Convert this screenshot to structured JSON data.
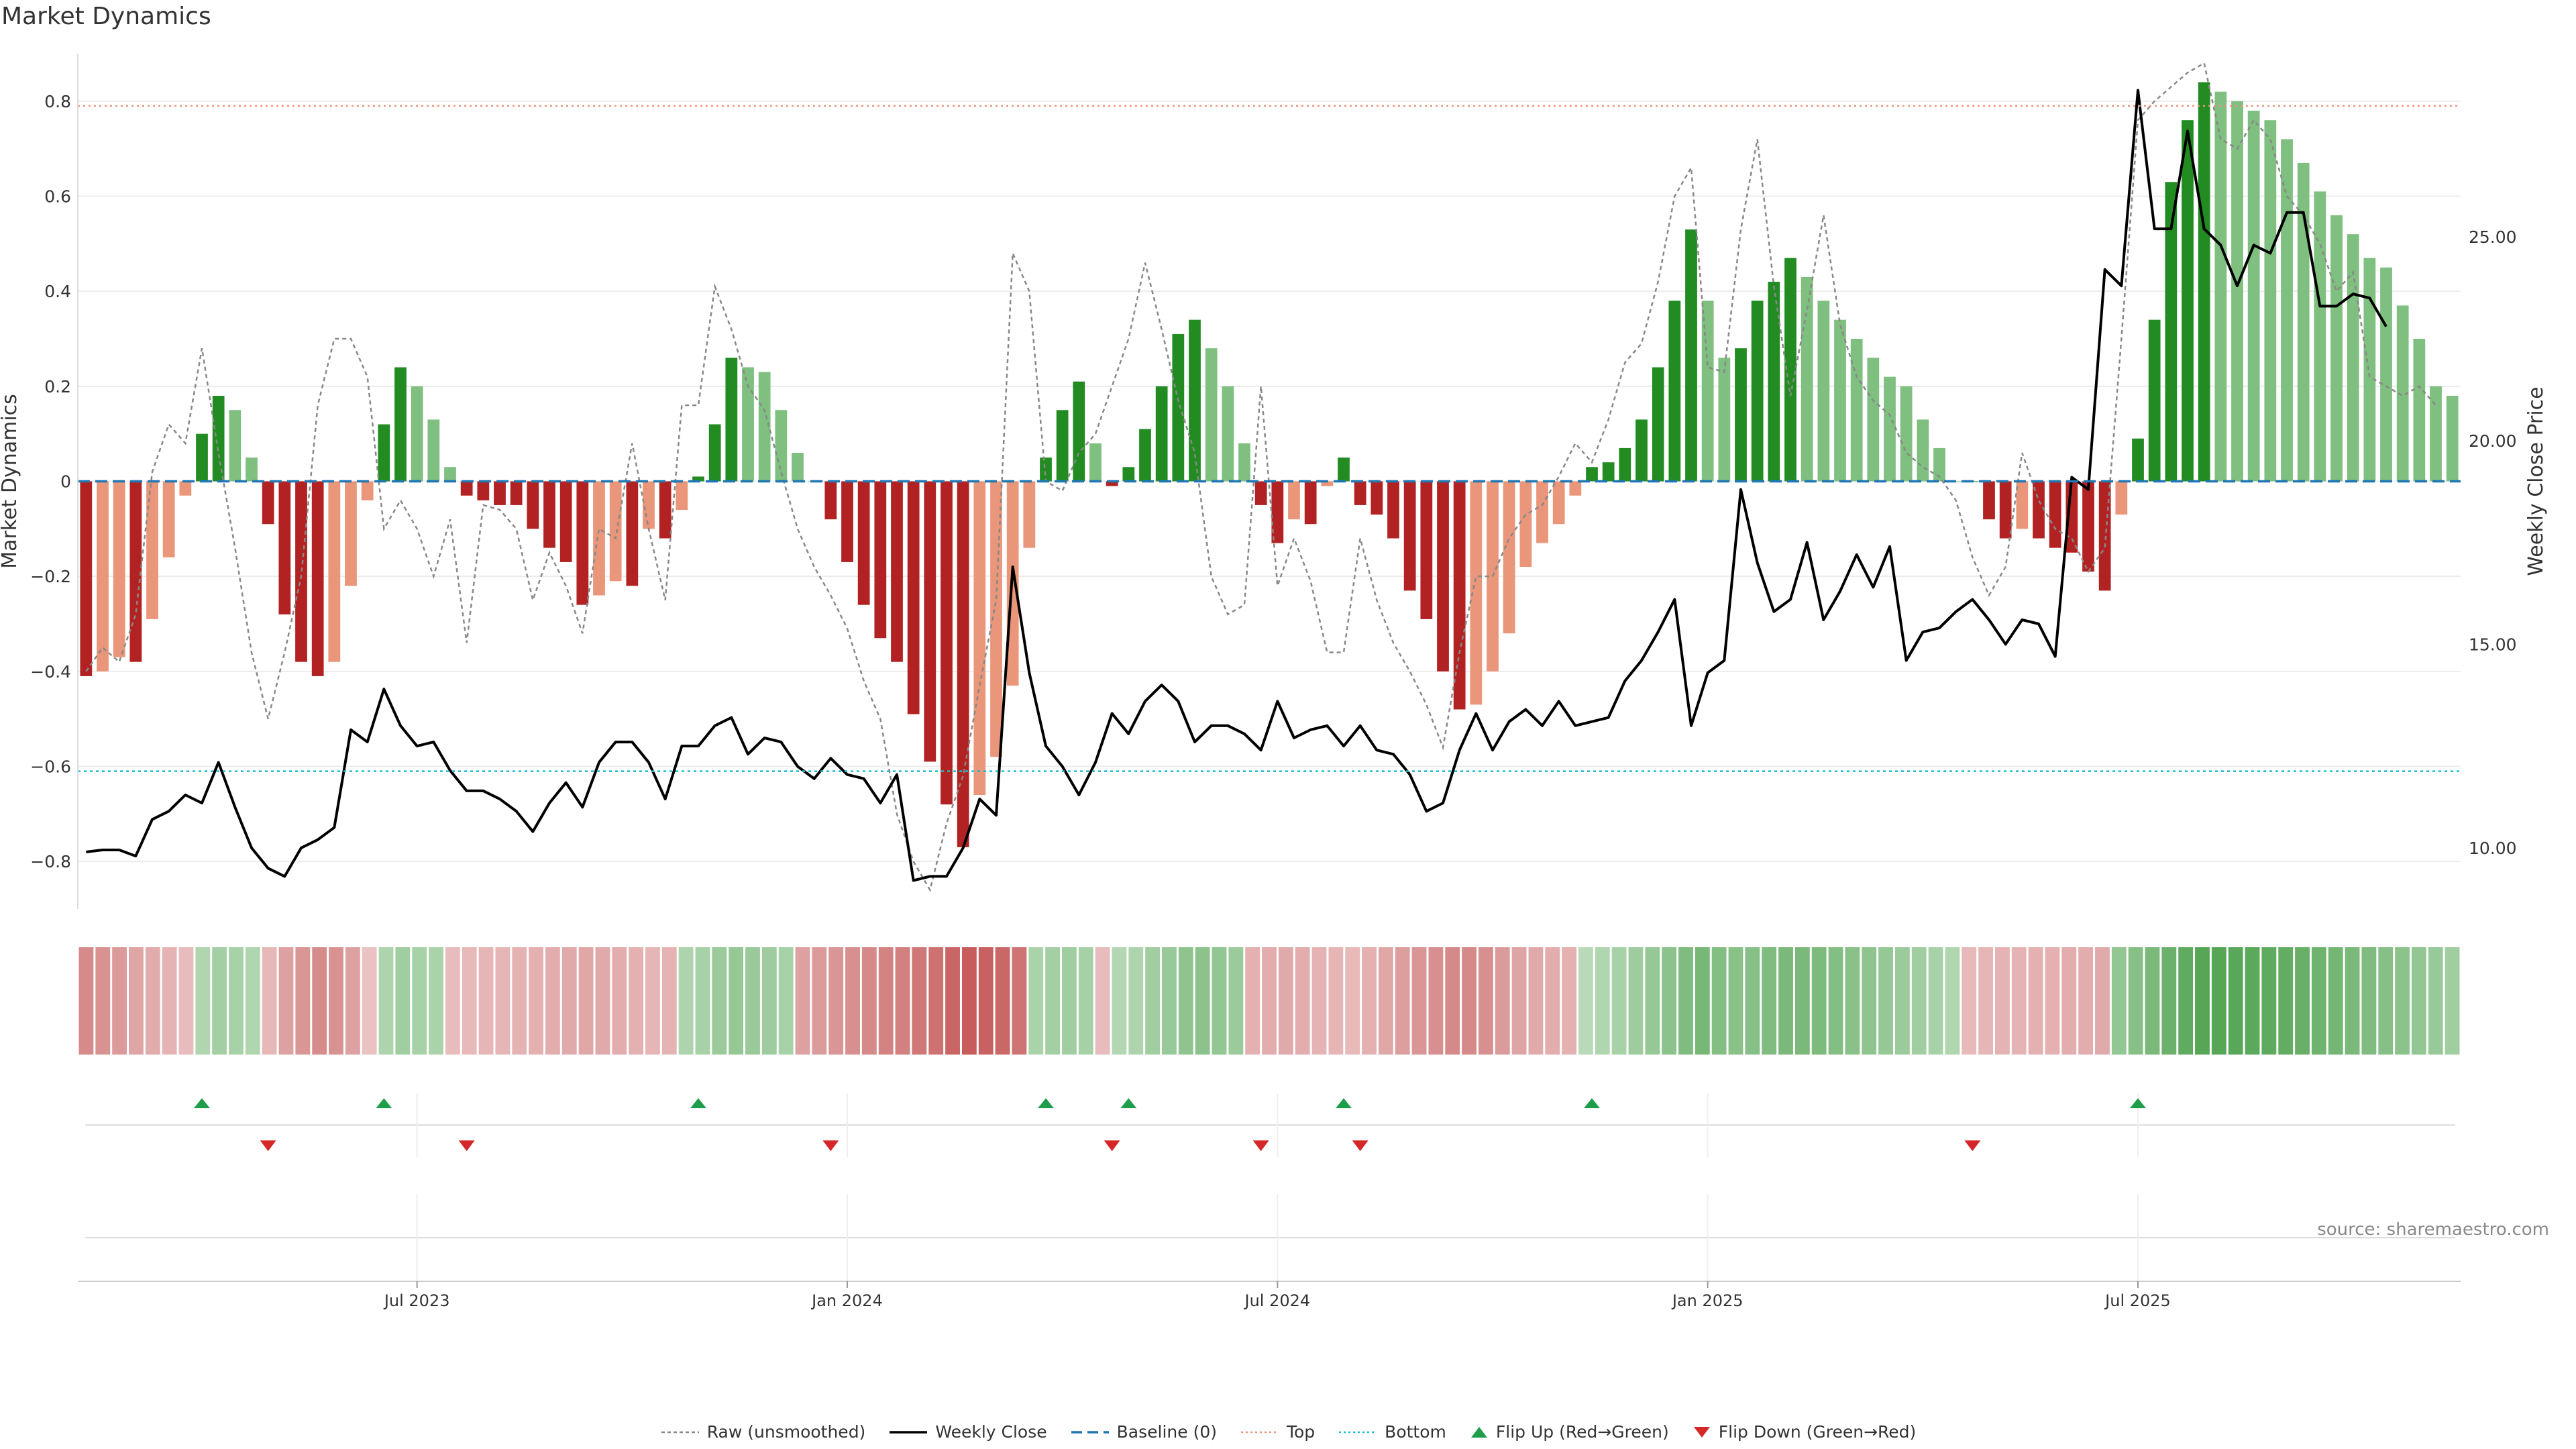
{
  "title": "Market Dynamics",
  "source": "source: sharemaestro.com",
  "colors": {
    "red_strong": "#b22222",
    "red_light": "#e9967a",
    "green_strong": "#228b22",
    "green_light": "#7fbf7f",
    "raw": "#888888",
    "close": "#000000",
    "baseline": "#1f77b4",
    "top": "#e9967a",
    "bottom": "#17becf",
    "flip_up": "#1e9e4a",
    "flip_down": "#d62728"
  },
  "legend": [
    {
      "key": "raw",
      "label": "Raw (unsmoothed)"
    },
    {
      "key": "close",
      "label": "Weekly Close"
    },
    {
      "key": "baseline",
      "label": "Baseline (0)"
    },
    {
      "key": "top",
      "label": "Top"
    },
    {
      "key": "bottom",
      "label": "Bottom"
    },
    {
      "key": "flip_up",
      "label": "Flip Up (Red→Green)"
    },
    {
      "key": "flip_down",
      "label": "Flip Down (Green→Red)"
    }
  ],
  "chart_data": {
    "type": "bar",
    "title": "Market Dynamics",
    "ylabel": "Market Dynamics",
    "y2label": "Weekly Close Price",
    "ylim": [
      -0.9,
      0.9
    ],
    "y2lim": [
      8.5,
      29.5
    ],
    "yticks": [
      "0.8",
      "0.6",
      "0.4",
      "0.2",
      "0",
      "−0.2",
      "−0.4",
      "−0.6",
      "−0.8"
    ],
    "y2ticks": [
      "25.00",
      "20.00",
      "15.00",
      "10.00"
    ],
    "top_threshold": 0.79,
    "bottom_threshold": -0.61,
    "x_range_weeks": [
      0,
      143
    ],
    "x_ticks": [
      {
        "label": "Jul 2023",
        "week": 20
      },
      {
        "label": "Jan 2024",
        "week": 46
      },
      {
        "label": "Jul 2024",
        "week": 72
      },
      {
        "label": "Jan 2025",
        "week": 98
      },
      {
        "label": "Jul 2025",
        "week": 124
      }
    ],
    "dynamics": [
      -0.41,
      -0.4,
      -0.37,
      -0.38,
      -0.29,
      -0.16,
      -0.03,
      0.1,
      0.18,
      0.15,
      0.05,
      -0.09,
      -0.28,
      -0.38,
      -0.41,
      -0.38,
      -0.22,
      -0.04,
      0.12,
      0.24,
      0.2,
      0.13,
      0.03,
      -0.03,
      -0.04,
      -0.05,
      -0.05,
      -0.1,
      -0.14,
      -0.17,
      -0.26,
      -0.24,
      -0.21,
      -0.22,
      -0.1,
      -0.12,
      -0.06,
      0.01,
      0.12,
      0.26,
      0.24,
      0.23,
      0.15,
      0.06,
      0,
      -0.08,
      -0.17,
      -0.26,
      -0.33,
      -0.38,
      -0.49,
      -0.59,
      -0.68,
      -0.77,
      -0.66,
      -0.58,
      -0.43,
      -0.14,
      0.05,
      0.15,
      0.21,
      0.08,
      -0.01,
      0.03,
      0.11,
      0.2,
      0.31,
      0.34,
      0.28,
      0.2,
      0.08,
      -0.05,
      -0.13,
      -0.08,
      -0.09,
      -0.01,
      0.05,
      -0.05,
      -0.07,
      -0.12,
      -0.23,
      -0.29,
      -0.4,
      -0.48,
      -0.47,
      -0.4,
      -0.32,
      -0.18,
      -0.13,
      -0.09,
      -0.03,
      0.03,
      0.04,
      0.07,
      0.13,
      0.24,
      0.38,
      0.53,
      0.38,
      0.26,
      0.28,
      0.38,
      0.42,
      0.47,
      0.43,
      0.38,
      0.34,
      0.3,
      0.26,
      0.22,
      0.2,
      0.13,
      0.07,
      0,
      0,
      -0.08,
      -0.12,
      -0.1,
      -0.12,
      -0.14,
      -0.15,
      -0.19,
      -0.23,
      -0.07,
      0.09,
      0.34,
      0.63,
      0.76,
      0.84,
      0.82,
      0.8,
      0.78,
      0.76,
      0.72,
      0.67,
      0.61,
      0.56,
      0.52,
      0.47,
      0.45,
      0.37,
      0.3,
      0.2,
      0.18
    ],
    "raw": [
      -0.4,
      -0.35,
      -0.38,
      -0.28,
      0.02,
      0.12,
      0.08,
      0.28,
      0.06,
      -0.14,
      -0.36,
      -0.5,
      -0.36,
      -0.2,
      0.16,
      0.3,
      0.3,
      0.22,
      -0.1,
      -0.04,
      -0.1,
      -0.2,
      -0.08,
      -0.34,
      -0.05,
      -0.06,
      -0.1,
      -0.25,
      -0.15,
      -0.22,
      -0.32,
      -0.1,
      -0.12,
      0.08,
      -0.1,
      -0.25,
      0.16,
      0.16,
      0.41,
      0.32,
      0.2,
      0.15,
      0.02,
      -0.1,
      -0.18,
      -0.24,
      -0.31,
      -0.42,
      -0.5,
      -0.7,
      -0.8,
      -0.86,
      -0.72,
      -0.62,
      -0.43,
      -0.25,
      0.48,
      0.4,
      0,
      -0.02,
      0.06,
      0.1,
      0.2,
      0.3,
      0.46,
      0.32,
      0.17,
      0.06,
      -0.2,
      -0.28,
      -0.26,
      0.2,
      -0.22,
      -0.12,
      -0.21,
      -0.36,
      -0.36,
      -0.12,
      -0.25,
      -0.34,
      -0.4,
      -0.47,
      -0.56,
      -0.36,
      -0.2,
      -0.2,
      -0.12,
      -0.07,
      -0.05,
      0.01,
      0.08,
      0.04,
      0.13,
      0.25,
      0.29,
      0.42,
      0.6,
      0.66,
      0.24,
      0.23,
      0.53,
      0.72,
      0.41,
      0.18,
      0.36,
      0.56,
      0.33,
      0.22,
      0.17,
      0.14,
      0.06,
      0.03,
      0.01,
      -0.04,
      -0.16,
      -0.24,
      -0.18,
      0.06,
      -0.04,
      -0.1,
      -0.12,
      -0.19,
      -0.14,
      0.3,
      0.76,
      0.8,
      0.83,
      0.86,
      0.88,
      0.72,
      0.7,
      0.76,
      0.72,
      0.6,
      0.56,
      0.5,
      0.4,
      0.44,
      0.22,
      0.2,
      0.18,
      0.2,
      0.16
    ],
    "close": [
      9.9,
      9.95,
      9.95,
      9.8,
      10.7,
      10.9,
      11.3,
      11.1,
      12.1,
      11.0,
      10.0,
      9.5,
      9.3,
      10.0,
      10.2,
      10.5,
      12.9,
      12.6,
      13.9,
      13.0,
      12.5,
      12.6,
      11.9,
      11.4,
      11.4,
      11.2,
      10.9,
      10.4,
      11.1,
      11.6,
      11.0,
      12.1,
      12.6,
      12.6,
      12.1,
      11.2,
      12.5,
      12.5,
      13.0,
      13.2,
      12.3,
      12.7,
      12.6,
      12.0,
      11.7,
      12.2,
      11.8,
      11.7,
      11.1,
      11.8,
      9.2,
      9.3,
      9.3,
      10.0,
      11.2,
      10.8,
      16.9,
      14.3,
      12.5,
      12.0,
      11.3,
      12.1,
      13.3,
      12.8,
      13.6,
      14.0,
      13.6,
      12.6,
      13.0,
      13.0,
      12.8,
      12.4,
      13.6,
      12.7,
      12.9,
      13.0,
      12.5,
      13.0,
      12.4,
      12.3,
      11.8,
      10.9,
      11.1,
      12.4,
      13.3,
      12.4,
      13.1,
      13.4,
      13.0,
      13.6,
      13.0,
      13.1,
      13.2,
      14.1,
      14.6,
      15.3,
      16.1,
      13.0,
      14.3,
      14.6,
      18.8,
      17.0,
      15.8,
      16.1,
      17.5,
      15.6,
      16.3,
      17.2,
      16.4,
      17.4,
      14.6,
      15.3,
      15.4,
      15.8,
      16.1,
      15.6,
      15.0,
      15.6,
      15.5,
      14.7,
      19.1,
      18.8,
      24.2,
      23.8,
      28.6,
      25.2,
      25.2,
      27.6,
      25.2,
      24.8,
      23.8,
      24.8,
      24.6,
      25.6,
      25.6,
      23.3,
      23.3,
      23.6,
      23.5,
      22.8
    ],
    "heat_strip": [
      -0.45,
      -0.4,
      -0.34,
      -0.28,
      -0.23,
      -0.18,
      -0.12,
      0.2,
      0.28,
      0.26,
      0.2,
      -0.15,
      -0.3,
      -0.38,
      -0.44,
      -0.4,
      -0.3,
      -0.08,
      0.22,
      0.3,
      0.26,
      0.24,
      -0.12,
      -0.14,
      -0.16,
      -0.16,
      -0.18,
      -0.2,
      -0.22,
      -0.24,
      -0.26,
      -0.24,
      -0.22,
      -0.2,
      -0.16,
      -0.18,
      0.22,
      0.26,
      0.34,
      0.38,
      0.35,
      0.32,
      0.26,
      -0.3,
      -0.34,
      -0.38,
      -0.42,
      -0.46,
      -0.5,
      -0.52,
      -0.58,
      -0.62,
      -0.7,
      -0.76,
      -0.72,
      -0.68,
      -0.6,
      0.24,
      0.28,
      0.3,
      0.27,
      -0.12,
      0.18,
      0.22,
      0.3,
      0.36,
      0.42,
      0.44,
      0.4,
      0.34,
      -0.2,
      -0.22,
      -0.24,
      -0.22,
      -0.18,
      -0.16,
      -0.14,
      -0.2,
      -0.26,
      -0.32,
      -0.38,
      -0.42,
      -0.46,
      -0.46,
      -0.42,
      -0.34,
      -0.28,
      -0.24,
      -0.22,
      -0.2,
      0.14,
      0.2,
      0.26,
      0.32,
      0.38,
      0.44,
      0.52,
      0.58,
      0.5,
      0.46,
      0.48,
      0.52,
      0.56,
      0.56,
      0.54,
      0.5,
      0.46,
      0.42,
      0.38,
      0.34,
      0.3,
      0.26,
      0.2,
      -0.14,
      -0.16,
      -0.18,
      -0.18,
      -0.2,
      -0.2,
      -0.22,
      -0.22,
      -0.24,
      0.4,
      0.48,
      0.56,
      0.66,
      0.74,
      0.8,
      0.8,
      0.78,
      0.77,
      0.75,
      0.72,
      0.68,
      0.64,
      0.6,
      0.56,
      0.52,
      0.48,
      0.44,
      0.4,
      0.36,
      0.3
    ],
    "flip_up_weeks": [
      7,
      18,
      37,
      58,
      63,
      76,
      91,
      124
    ],
    "flip_down_weeks": [
      11,
      23,
      45,
      62,
      71,
      77,
      114
    ]
  }
}
